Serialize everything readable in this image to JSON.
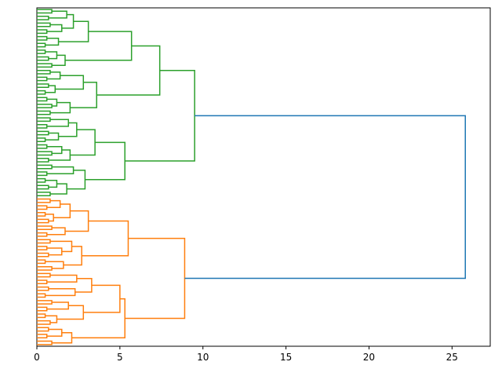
{
  "chart_data": {
    "type": "dendrogram",
    "orientation": "left",
    "xlim": [
      0,
      27.3
    ],
    "xticks": [
      0,
      5,
      10,
      15,
      20,
      25
    ],
    "tree": {
      "height": 25.8,
      "color": "#1f77b4",
      "children": [
        {
          "height": 9.5,
          "color": "#2ca02c",
          "children": [
            {
              "height": 7.4,
              "children": [
                {
                  "height": 5.7,
                  "children": [
                    {
                      "height": 3.1,
                      "children": [
                        {
                          "height": 2.2,
                          "children": [
                            {
                              "height": 1.8,
                              "children": [
                                0.9,
                                0.7
                              ]
                            },
                            {
                              "height": 1.5,
                              "children": [
                                0.8,
                                0.6
                              ]
                            }
                          ]
                        },
                        {
                          "height": 1.3,
                          "children": [
                            0.6,
                            0.5
                          ]
                        }
                      ]
                    },
                    {
                      "height": 1.7,
                      "children": [
                        {
                          "height": 1.2,
                          "children": [
                            0.5,
                            0.7
                          ]
                        },
                        0.9
                      ]
                    }
                  ]
                },
                {
                  "height": 3.6,
                  "children": [
                    {
                      "height": 2.8,
                      "children": [
                        {
                          "height": 1.4,
                          "children": [
                            0.8,
                            0.6
                          ]
                        },
                        {
                          "height": 1.1,
                          "children": [
                            0.7,
                            0.5
                          ]
                        }
                      ]
                    },
                    {
                      "height": 2.0,
                      "children": [
                        {
                          "height": 1.2,
                          "children": [
                            0.6,
                            0.9
                          ]
                        },
                        0.8
                      ]
                    }
                  ]
                }
              ]
            },
            {
              "height": 5.3,
              "children": [
                {
                  "height": 3.5,
                  "children": [
                    {
                      "height": 2.4,
                      "children": [
                        {
                          "height": 1.9,
                          "children": [
                            0.8,
                            0.6
                          ]
                        },
                        {
                          "height": 1.3,
                          "children": [
                            0.7,
                            0.5
                          ]
                        }
                      ]
                    },
                    {
                      "height": 2.0,
                      "children": [
                        {
                          "height": 1.5,
                          "children": [
                            0.6,
                            0.9
                          ]
                        },
                        0.7
                      ]
                    }
                  ]
                },
                {
                  "height": 2.9,
                  "children": [
                    {
                      "height": 2.2,
                      "children": [
                        0.9,
                        0.6
                      ]
                    },
                    {
                      "height": 1.8,
                      "children": [
                        {
                          "height": 1.2,
                          "children": [
                            0.5,
                            0.7
                          ]
                        },
                        0.8
                      ]
                    }
                  ]
                }
              ]
            }
          ]
        },
        {
          "height": 8.9,
          "color": "#ff7f0e",
          "children": [
            {
              "height": 5.5,
              "children": [
                {
                  "height": 3.1,
                  "children": [
                    {
                      "height": 2.0,
                      "children": [
                        {
                          "height": 1.4,
                          "children": [
                            0.8,
                            0.6
                          ]
                        },
                        {
                          "height": 1.0,
                          "children": [
                            0.5,
                            0.7
                          ]
                        }
                      ]
                    },
                    {
                      "height": 1.7,
                      "children": [
                        0.9,
                        0.6
                      ]
                    }
                  ]
                },
                {
                  "height": 2.7,
                  "children": [
                    {
                      "height": 2.1,
                      "children": [
                        0.8,
                        {
                          "height": 1.5,
                          "children": [
                            0.6,
                            0.7
                          ]
                        }
                      ]
                    },
                    {
                      "height": 1.6,
                      "children": [
                        0.5,
                        0.9
                      ]
                    }
                  ]
                }
              ]
            },
            {
              "height": 5.3,
              "children": [
                {
                  "height": 5.0,
                  "children": [
                    {
                      "height": 3.3,
                      "children": [
                        {
                          "height": 2.4,
                          "children": [
                            0.8,
                            0.6
                          ]
                        },
                        {
                          "height": 2.3,
                          "children": [
                            0.7,
                            0.5
                          ]
                        }
                      ]
                    },
                    {
                      "height": 2.8,
                      "children": [
                        {
                          "height": 1.9,
                          "children": [
                            0.9,
                            0.6
                          ]
                        },
                        {
                          "height": 1.2,
                          "children": [
                            0.5,
                            0.8
                          ]
                        }
                      ]
                    }
                  ]
                },
                {
                  "height": 2.1,
                  "children": [
                    {
                      "height": 1.5,
                      "children": [
                        0.7,
                        0.6
                      ]
                    },
                    0.9
                  ]
                }
              ]
            }
          ]
        }
      ]
    }
  }
}
